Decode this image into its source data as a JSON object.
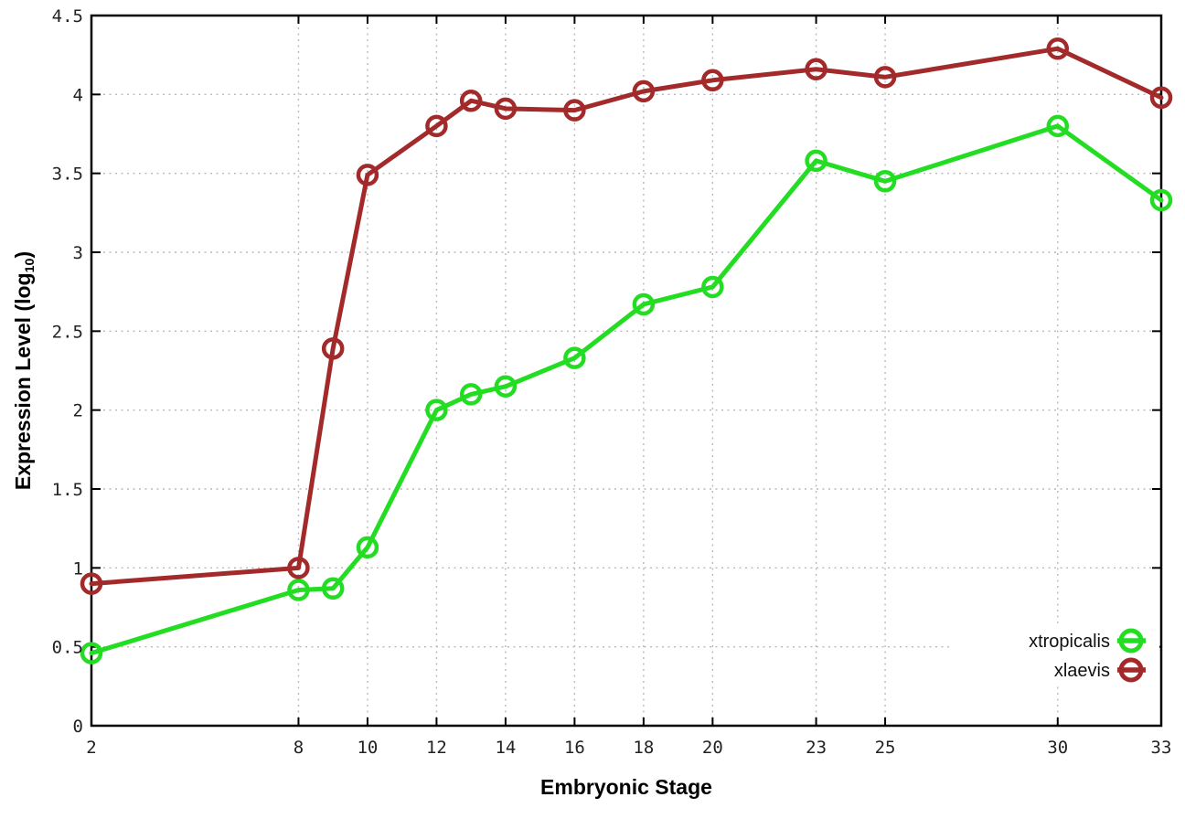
{
  "chart_data": {
    "type": "line",
    "title": "",
    "xlabel": "Embryonic Stage",
    "ylabel": "Expression Level (log10)",
    "ylabel_parts": {
      "pre": "Expression Level (log",
      "sub": "10",
      "post": ")"
    },
    "x": [
      2,
      8,
      9,
      10,
      12,
      13,
      14,
      16,
      18,
      20,
      23,
      25,
      30,
      33
    ],
    "xticks": [
      2,
      8,
      10,
      12,
      14,
      16,
      18,
      20,
      23,
      25,
      30,
      33
    ],
    "yticks": [
      0,
      0.5,
      1,
      1.5,
      2,
      2.5,
      3,
      3.5,
      4,
      4.5
    ],
    "xlim": [
      2,
      33
    ],
    "ylim": [
      0,
      4.5
    ],
    "grid": true,
    "legend_position": "inside-bottom-right",
    "series": [
      {
        "name": "xtropicalis",
        "color": "#22dd22",
        "values": [
          0.46,
          0.86,
          0.87,
          1.13,
          2.0,
          2.1,
          2.15,
          2.33,
          2.67,
          2.78,
          3.58,
          3.45,
          3.8,
          3.33
        ]
      },
      {
        "name": "xlaevis",
        "color": "#a32a2a",
        "values": [
          0.9,
          1.0,
          2.39,
          3.49,
          3.8,
          3.96,
          3.91,
          3.9,
          4.02,
          4.09,
          4.16,
          4.11,
          4.29,
          3.98
        ]
      }
    ],
    "axis_color": "#000000",
    "grid_color": "#b9b9b9",
    "tick_label_color": "#222222",
    "background": "#ffffff"
  }
}
